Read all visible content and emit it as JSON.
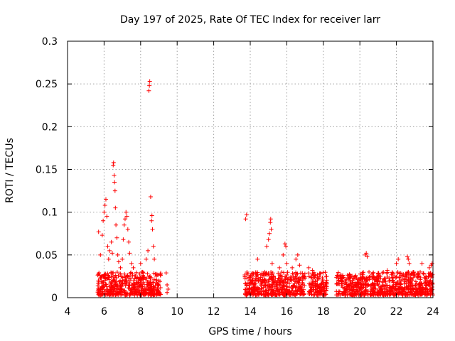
{
  "chart_data": {
    "type": "scatter",
    "title": "Day 197 of 2025, Rate Of TEC Index for receiver larr",
    "xlabel": "GPS time / hours",
    "ylabel": "ROTI / TECUs",
    "xlim": [
      4,
      24
    ],
    "ylim": [
      0,
      0.3
    ],
    "grid": true,
    "marker": "+",
    "marker_color": "#ff0000",
    "x_ticks": [
      4,
      6,
      8,
      10,
      12,
      14,
      16,
      18,
      20,
      22,
      24
    ],
    "x_tick_labels": [
      "4",
      "6",
      "8",
      "10",
      "12",
      "14",
      "16",
      "18",
      "20",
      "22",
      "24"
    ],
    "y_ticks": [
      0,
      0.05,
      0.1,
      0.15,
      0.2,
      0.25,
      0.3
    ],
    "y_tick_labels": [
      "0",
      "0.05",
      "0.1",
      "0.15",
      "0.2",
      "0.25",
      "0.3"
    ],
    "series": [
      {
        "name": "ROTI",
        "dense_band": {
          "segments": [
            [
              5.65,
              9.1
            ],
            [
              13.7,
              17.0
            ],
            [
              17.2,
              18.2
            ],
            [
              18.7,
              24.0
            ]
          ],
          "y_min": 0.003,
          "y_max": 0.03
        },
        "points": [
          [
            5.7,
            0.077
          ],
          [
            5.8,
            0.05
          ],
          [
            5.9,
            0.073
          ],
          [
            5.95,
            0.09
          ],
          [
            6.0,
            0.1
          ],
          [
            6.05,
            0.108
          ],
          [
            6.1,
            0.115
          ],
          [
            6.15,
            0.095
          ],
          [
            6.2,
            0.06
          ],
          [
            6.25,
            0.045
          ],
          [
            6.3,
            0.055
          ],
          [
            6.4,
            0.065
          ],
          [
            6.45,
            0.052
          ],
          [
            6.5,
            0.155
          ],
          [
            6.52,
            0.158
          ],
          [
            6.55,
            0.143
          ],
          [
            6.57,
            0.135
          ],
          [
            6.6,
            0.125
          ],
          [
            6.62,
            0.105
          ],
          [
            6.65,
            0.085
          ],
          [
            6.7,
            0.07
          ],
          [
            6.75,
            0.05
          ],
          [
            6.8,
            0.042
          ],
          [
            6.9,
            0.035
          ],
          [
            7.0,
            0.045
          ],
          [
            7.05,
            0.068
          ],
          [
            7.1,
            0.085
          ],
          [
            7.15,
            0.092
          ],
          [
            7.2,
            0.1
          ],
          [
            7.25,
            0.095
          ],
          [
            7.3,
            0.08
          ],
          [
            7.35,
            0.065
          ],
          [
            7.4,
            0.052
          ],
          [
            7.5,
            0.04
          ],
          [
            7.6,
            0.035
          ],
          [
            8.0,
            0.04
          ],
          [
            8.1,
            0.03
          ],
          [
            8.3,
            0.045
          ],
          [
            8.4,
            0.055
          ],
          [
            8.45,
            0.242
          ],
          [
            8.48,
            0.248
          ],
          [
            8.5,
            0.253
          ],
          [
            8.55,
            0.118
          ],
          [
            8.6,
            0.09
          ],
          [
            8.62,
            0.096
          ],
          [
            8.65,
            0.08
          ],
          [
            8.7,
            0.06
          ],
          [
            8.75,
            0.045
          ],
          [
            9.4,
            0.029
          ],
          [
            9.45,
            0.015
          ],
          [
            9.5,
            0.01
          ],
          [
            9.45,
            0.006
          ],
          [
            13.8,
            0.097
          ],
          [
            13.75,
            0.092
          ],
          [
            14.4,
            0.045
          ],
          [
            14.8,
            0.03
          ],
          [
            14.9,
            0.06
          ],
          [
            15.0,
            0.068
          ],
          [
            15.05,
            0.075
          ],
          [
            15.1,
            0.088
          ],
          [
            15.12,
            0.092
          ],
          [
            15.15,
            0.08
          ],
          [
            15.2,
            0.04
          ],
          [
            15.6,
            0.035
          ],
          [
            15.8,
            0.05
          ],
          [
            15.9,
            0.063
          ],
          [
            15.95,
            0.06
          ],
          [
            16.0,
            0.04
          ],
          [
            16.3,
            0.035
          ],
          [
            16.5,
            0.045
          ],
          [
            16.6,
            0.05
          ],
          [
            16.7,
            0.038
          ],
          [
            17.2,
            0.035
          ],
          [
            17.4,
            0.032
          ],
          [
            18.8,
            0.022
          ],
          [
            19.2,
            0.02
          ],
          [
            19.5,
            0.025
          ],
          [
            20.3,
            0.05
          ],
          [
            20.35,
            0.052
          ],
          [
            20.4,
            0.048
          ],
          [
            20.5,
            0.03
          ],
          [
            21.0,
            0.028
          ],
          [
            21.5,
            0.032
          ],
          [
            22.0,
            0.04
          ],
          [
            22.1,
            0.045
          ],
          [
            22.6,
            0.048
          ],
          [
            22.65,
            0.045
          ],
          [
            22.7,
            0.04
          ],
          [
            23.3,
            0.03
          ],
          [
            23.4,
            0.04
          ],
          [
            23.8,
            0.035
          ],
          [
            23.9,
            0.038
          ],
          [
            23.95,
            0.04
          ]
        ]
      }
    ]
  }
}
